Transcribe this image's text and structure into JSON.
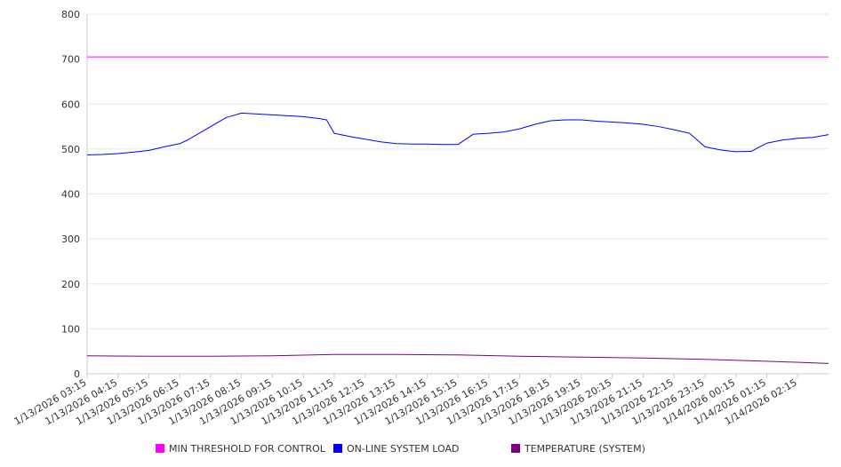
{
  "chart_data": {
    "type": "line",
    "title": "",
    "xlabel": "",
    "ylabel": "",
    "ylim": [
      0,
      800
    ],
    "y_ticks": [
      0,
      100,
      200,
      300,
      400,
      500,
      600,
      700,
      800
    ],
    "grid": true,
    "legend_position": "bottom",
    "x_labels": [
      "1/13/2026 03:15",
      "1/13/2026 04:15",
      "1/13/2026 05:15",
      "1/13/2026 06:15",
      "1/13/2026 07:15",
      "1/13/2026 08:15",
      "1/13/2026 09:15",
      "1/13/2026 10:15",
      "1/13/2026 11:15",
      "1/13/2026 12:15",
      "1/13/2026 13:15",
      "1/13/2026 14:15",
      "1/13/2026 15:15",
      "1/13/2026 16:15",
      "1/13/2026 17:15",
      "1/13/2026 18:15",
      "1/13/2026 19:15",
      "1/13/2026 20:15",
      "1/13/2026 21:15",
      "1/13/2026 22:15",
      "1/13/2026 23:15",
      "1/14/2026 00:15",
      "1/14/2026 01:15",
      "1/14/2026 02:15"
    ],
    "x_start": "1/13/2026 03:15",
    "x_end": "1/14/2026 03:15",
    "series": [
      {
        "name": "MIN THRESHOLD FOR CONTROL",
        "color": "#ff00ff",
        "x": [
          "1/13/2026 03:15",
          "1/14/2026 03:15"
        ],
        "values": [
          705,
          705
        ]
      },
      {
        "name": "ON-LINE SYSTEM LOAD",
        "color": "#0000ff",
        "x": [
          "1/13/2026 03:15",
          "1/13/2026 03:45",
          "1/13/2026 04:15",
          "1/13/2026 04:45",
          "1/13/2026 05:15",
          "1/13/2026 05:45",
          "1/13/2026 06:15",
          "1/13/2026 06:30",
          "1/13/2026 06:45",
          "1/13/2026 07:15",
          "1/13/2026 07:45",
          "1/13/2026 08:15",
          "1/13/2026 08:45",
          "1/13/2026 09:15",
          "1/13/2026 09:45",
          "1/13/2026 10:15",
          "1/13/2026 10:45",
          "1/13/2026 11:00",
          "1/13/2026 11:15",
          "1/13/2026 11:45",
          "1/13/2026 12:15",
          "1/13/2026 12:45",
          "1/13/2026 13:15",
          "1/13/2026 13:45",
          "1/13/2026 14:15",
          "1/13/2026 14:45",
          "1/13/2026 15:15",
          "1/13/2026 15:45",
          "1/13/2026 16:15",
          "1/13/2026 16:45",
          "1/13/2026 17:15",
          "1/13/2026 17:45",
          "1/13/2026 18:15",
          "1/13/2026 18:45",
          "1/13/2026 19:15",
          "1/13/2026 19:45",
          "1/13/2026 20:15",
          "1/13/2026 20:45",
          "1/13/2026 21:15",
          "1/13/2026 21:45",
          "1/13/2026 22:15",
          "1/13/2026 22:45",
          "1/13/2026 23:15",
          "1/13/2026 23:45",
          "1/14/2026 00:15",
          "1/14/2026 00:45",
          "1/14/2026 01:15",
          "1/14/2026 01:45",
          "1/14/2026 02:15",
          "1/14/2026 02:45",
          "1/14/2026 03:15"
        ],
        "values": [
          487,
          488,
          490,
          493,
          497,
          505,
          512,
          520,
          530,
          550,
          570,
          580,
          578,
          576,
          574,
          572,
          568,
          565,
          535,
          528,
          522,
          516,
          512,
          511,
          511,
          510,
          510,
          533,
          535,
          538,
          545,
          555,
          563,
          565,
          565,
          562,
          560,
          558,
          555,
          550,
          543,
          535,
          505,
          498,
          494,
          495,
          513,
          520,
          524,
          526,
          532
        ]
      },
      {
        "name": "TEMPERATURE (SYSTEM)",
        "color": "#800080",
        "x": [
          "1/13/2026 03:15",
          "1/13/2026 05:15",
          "1/13/2026 07:15",
          "1/13/2026 09:15",
          "1/13/2026 11:15",
          "1/13/2026 13:15",
          "1/13/2026 15:15",
          "1/13/2026 17:15",
          "1/13/2026 19:15",
          "1/13/2026 21:15",
          "1/13/2026 23:15",
          "1/14/2026 01:15",
          "1/14/2026 03:15"
        ],
        "values": [
          40,
          39,
          39,
          40,
          43,
          43,
          42,
          39,
          37,
          35,
          32,
          28,
          23
        ]
      }
    ]
  }
}
